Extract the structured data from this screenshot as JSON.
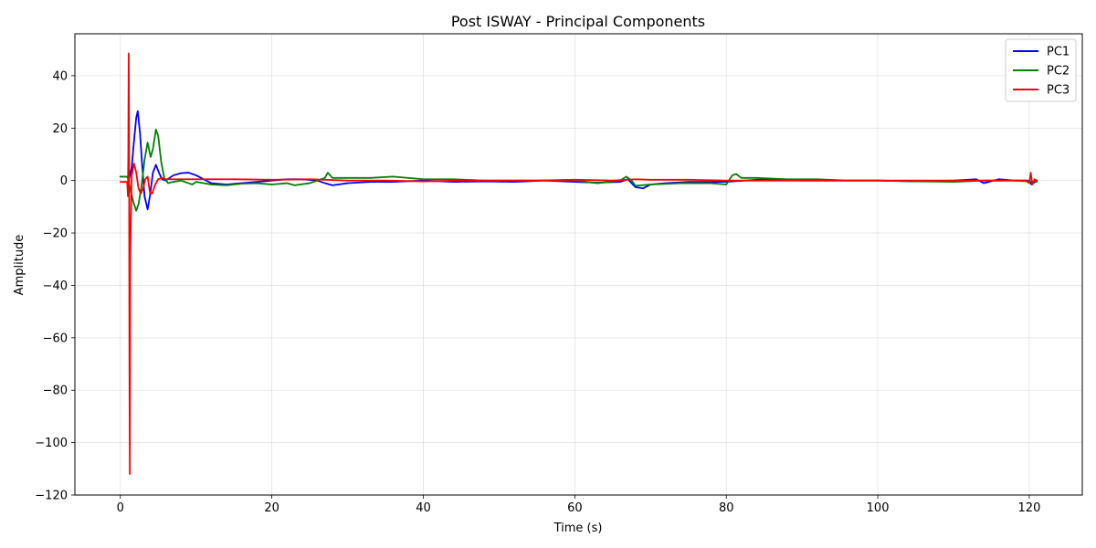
{
  "chart_data": {
    "type": "line",
    "title": "Post ISWAY - Principal Components",
    "xlabel": "Time (s)",
    "ylabel": "Amplitude",
    "xlim": [
      -6,
      127
    ],
    "ylim": [
      -120,
      56
    ],
    "xticks": [
      0,
      20,
      40,
      60,
      80,
      100,
      120
    ],
    "yticks": [
      -120,
      -100,
      -80,
      -60,
      -40,
      -20,
      0,
      20,
      40
    ],
    "grid": true,
    "legend_position": "top-right",
    "series": [
      {
        "name": "PC1",
        "color": "#0000ff",
        "x": [
          0,
          0.8,
          1.2,
          1.5,
          1.8,
          2.1,
          2.3,
          2.6,
          2.9,
          3.2,
          3.6,
          3.9,
          4.3,
          4.7,
          5.1,
          5.5,
          6.0,
          7.0,
          8.0,
          9.0,
          10.0,
          11.0,
          12.0,
          14.0,
          16.0,
          18.0,
          20.0,
          22.0,
          24.0,
          26.0,
          27.0,
          28.0,
          30.0,
          33.0,
          36.0,
          40.0,
          44.0,
          48.0,
          52.0,
          56.0,
          60.0,
          63.0,
          66.0,
          67.0,
          68.0,
          69.0,
          70.0,
          72.0,
          75.0,
          80.0,
          85.0,
          90.0,
          95.0,
          100.0,
          105.0,
          110.0,
          113.0,
          114.0,
          116.0,
          118.0,
          120.0,
          120.3,
          121.0
        ],
        "values": [
          1.5,
          1.5,
          1.0,
          5.0,
          15.0,
          24.0,
          26.5,
          18.0,
          5.0,
          -6.0,
          -11.0,
          -6.0,
          3.0,
          6.0,
          3.0,
          0.5,
          0.0,
          2.0,
          2.8,
          3.0,
          2.0,
          0.5,
          -1.0,
          -1.5,
          -1.0,
          -0.5,
          0.0,
          0.5,
          0.5,
          0.0,
          -1.0,
          -1.8,
          -1.0,
          -0.5,
          -0.5,
          0.0,
          -0.5,
          -0.3,
          -0.5,
          0.0,
          -0.5,
          -0.8,
          -0.5,
          0.5,
          -2.5,
          -3.0,
          -1.5,
          -1.0,
          -0.5,
          -0.5,
          0.5,
          0.0,
          0.0,
          0.0,
          -0.3,
          0.0,
          0.5,
          -1.0,
          0.5,
          0.0,
          0.0,
          -1.5,
          0.0
        ]
      },
      {
        "name": "PC2",
        "color": "#008000",
        "x": [
          0,
          0.8,
          1.0,
          1.3,
          1.7,
          2.1,
          2.4,
          2.8,
          3.2,
          3.6,
          4.0,
          4.3,
          4.7,
          5.0,
          5.4,
          5.8,
          6.3,
          7.0,
          8.0,
          9.0,
          9.5,
          10.0,
          12.0,
          14.0,
          16.0,
          18.0,
          20.0,
          22.0,
          23.0,
          25.0,
          27.0,
          27.4,
          28.0,
          30.0,
          33.0,
          36.0,
          40.0,
          44.0,
          48.0,
          52.0,
          56.0,
          60.0,
          63.0,
          66.0,
          66.8,
          67.5,
          68.0,
          70.0,
          74.0,
          78.0,
          80.0,
          80.8,
          81.3,
          82.0,
          84.0,
          88.0,
          92.0,
          96.0,
          100.0,
          105.0,
          110.0,
          114.0,
          118.0,
          121.0
        ],
        "values": [
          1.5,
          1.5,
          1.0,
          -3.0,
          -8.0,
          -11.5,
          -9.0,
          -2.0,
          8.0,
          14.5,
          9.0,
          12.0,
          19.5,
          17.0,
          7.0,
          1.0,
          -1.0,
          -0.5,
          0.0,
          -1.0,
          -1.5,
          -0.5,
          -1.5,
          -1.8,
          -1.2,
          -1.0,
          -1.5,
          -1.0,
          -1.8,
          -1.0,
          1.0,
          3.0,
          1.0,
          1.0,
          1.0,
          1.5,
          0.5,
          0.5,
          0.0,
          0.0,
          0.0,
          0.0,
          -1.0,
          0.0,
          1.5,
          0.0,
          -2.0,
          -1.5,
          -1.0,
          -1.0,
          -1.5,
          2.0,
          2.5,
          1.0,
          1.0,
          0.5,
          0.5,
          0.0,
          0.0,
          -0.3,
          -0.5,
          0.0,
          0.0,
          -0.5
        ]
      },
      {
        "name": "PC3",
        "color": "#ff0000",
        "x": [
          0,
          0.9,
          1.0,
          1.05,
          1.1,
          1.15,
          1.2,
          1.25,
          1.3,
          1.5,
          1.8,
          2.1,
          2.4,
          2.7,
          3.0,
          3.3,
          3.6,
          3.9,
          4.2,
          4.6,
          5.0,
          5.5,
          6.0,
          7.0,
          8.0,
          10.0,
          12.0,
          15.0,
          20.0,
          25.0,
          30.0,
          35.0,
          40.0,
          45.0,
          50.0,
          55.0,
          60.0,
          65.0,
          68.0,
          70.0,
          75.0,
          80.0,
          85.0,
          90.0,
          95.0,
          100.0,
          105.0,
          110.0,
          115.0,
          119.5,
          120.0,
          120.2,
          120.4,
          120.7,
          121.0
        ],
        "values": [
          -0.5,
          -0.5,
          -6.0,
          10.0,
          48.5,
          20.0,
          -70.0,
          -112.0,
          -30.0,
          2.0,
          6.5,
          3.0,
          -3.0,
          -5.0,
          -3.0,
          0.5,
          1.5,
          -4.5,
          -5.0,
          -1.5,
          0.5,
          1.0,
          0.5,
          0.5,
          0.5,
          0.5,
          0.5,
          0.5,
          0.3,
          0.5,
          0.0,
          0.0,
          -0.3,
          0.0,
          0.0,
          0.0,
          0.3,
          0.0,
          0.5,
          0.3,
          0.3,
          0.0,
          0.0,
          0.0,
          0.0,
          0.0,
          0.0,
          0.0,
          0.0,
          0.0,
          -1.0,
          3.0,
          -1.5,
          0.5,
          0.0
        ]
      }
    ]
  }
}
